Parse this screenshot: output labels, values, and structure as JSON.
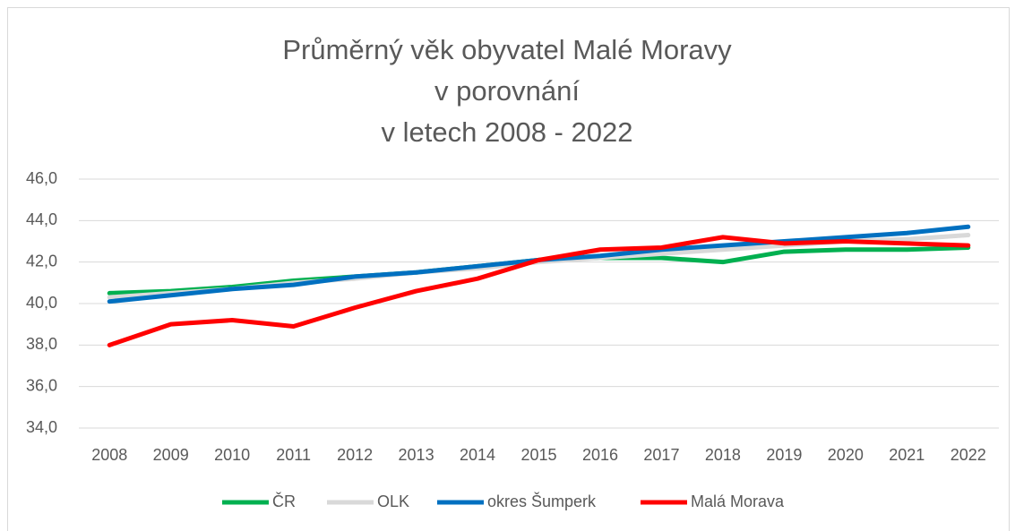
{
  "chart_data": {
    "type": "line",
    "title": [
      "Průměrný věk obyvatel Malé Moravy",
      "v porovnání",
      "v letech 2008 - 2022"
    ],
    "categories": [
      "2008",
      "2009",
      "2010",
      "2011",
      "2012",
      "2013",
      "2014",
      "2015",
      "2016",
      "2017",
      "2018",
      "2019",
      "2020",
      "2021",
      "2022"
    ],
    "series": [
      {
        "name": "ČR",
        "color": "#00b050",
        "values": [
          40.5,
          40.6,
          40.8,
          41.1,
          41.3,
          41.5,
          41.8,
          42.1,
          42.2,
          42.2,
          42.0,
          42.5,
          42.6,
          42.6,
          42.7
        ]
      },
      {
        "name": "OLK",
        "color": "#d9d9d9",
        "values": [
          40.3,
          40.5,
          40.7,
          41.0,
          41.2,
          41.5,
          41.7,
          42.0,
          42.2,
          42.4,
          42.6,
          42.8,
          43.0,
          43.1,
          43.3
        ]
      },
      {
        "name": "okres Šumperk",
        "color": "#0070c0",
        "values": [
          40.1,
          40.4,
          40.7,
          40.9,
          41.3,
          41.5,
          41.8,
          42.1,
          42.3,
          42.6,
          42.8,
          43.0,
          43.2,
          43.4,
          43.7
        ]
      },
      {
        "name": "Malá Morava",
        "color": "#ff0000",
        "values": [
          38.0,
          39.0,
          39.2,
          38.9,
          39.8,
          40.6,
          41.2,
          42.1,
          42.6,
          42.7,
          43.2,
          42.9,
          43.0,
          42.9,
          42.8
        ]
      }
    ],
    "ylim": [
      34,
      46
    ],
    "yticks": [
      {
        "value": 34,
        "label": "34,0"
      },
      {
        "value": 36,
        "label": "36,0"
      },
      {
        "value": 38,
        "label": "38,0"
      },
      {
        "value": 40,
        "label": "40,0"
      },
      {
        "value": 42,
        "label": "42,0"
      },
      {
        "value": 44,
        "label": "44,0"
      },
      {
        "value": 46,
        "label": "46,0"
      }
    ],
    "grid": true,
    "legend": "bottom"
  }
}
